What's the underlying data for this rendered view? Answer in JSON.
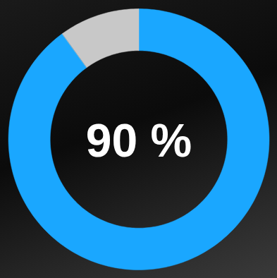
{
  "chart_data": {
    "type": "donut",
    "values": [
      90,
      10
    ],
    "colors": [
      "#1aa7ff",
      "#c8c8c8"
    ],
    "data_labels": true,
    "value_labels": [
      "90 %",
      null
    ]
  }
}
